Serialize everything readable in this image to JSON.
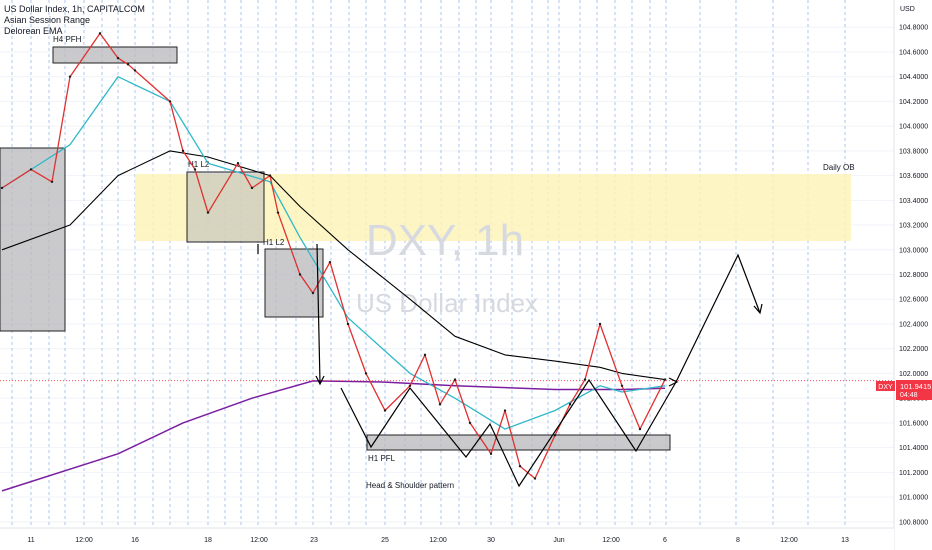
{
  "legend": {
    "symbol": "US Dollar Index, 1h, CAPITALCOM",
    "indicator_1": "Asian Session Range",
    "indicator_2": "Delorean EMA"
  },
  "watermark": {
    "ticker": "DXY, 1h",
    "name": "US Dollar Index"
  },
  "price_scale": {
    "currency": "USD",
    "ticks": [
      "104.8000",
      "104.6000",
      "104.4000",
      "104.2000",
      "104.0000",
      "103.8000",
      "103.6000",
      "103.4000",
      "103.2000",
      "103.0000",
      "102.8000",
      "102.6000",
      "102.4000",
      "102.2000",
      "102.0000",
      "101.8000",
      "101.6000",
      "101.4000",
      "101.2000",
      "101.0000",
      "100.8000"
    ],
    "last_price_label": "DXY",
    "last_price": "101.9415",
    "countdown": "04:48"
  },
  "time_scale": {
    "ticks": [
      "11",
      "12:00",
      "16",
      "18",
      "12:00",
      "23",
      "25",
      "12:00",
      "30",
      "Jun",
      "12:00",
      "6",
      "8",
      "12:00",
      "13"
    ]
  },
  "annotations": {
    "h4_pfh": "H4 PFH",
    "h1_l2_a": "H1 L2",
    "h1_l2_b": "H1 L2",
    "h1_pfl": "H1 PFL",
    "head_shoulders": "Head & Shoulder pattern",
    "daily_ob": "Daily OB"
  },
  "colors": {
    "price_line": "#e03030",
    "ema_fast": "#2fb8c8",
    "ema_slow": "#000000",
    "ema_long": "#7b1fa2",
    "daily_ob": "#fdf3b8",
    "range_box": "#b8b8bc",
    "session_line": "#5b8fd8",
    "badge": "#f23645"
  },
  "chart_data": {
    "type": "line",
    "title": "US Dollar Index, 1h, CAPITALCOM",
    "y_range": [
      100.75,
      105.02
    ],
    "series": [
      {
        "name": "",
        "x": [
          "May 10 12:00",
          "May 11",
          "May 11 12:00",
          "May 12",
          "May 12 12:00",
          "May 15",
          "May 15 12:00",
          "May 16",
          "May 16 12:00",
          "May 17",
          "May 17 12:00",
          "May 18",
          "May 18 12:00",
          "May 19",
          "May 19 12:00",
          "May 22",
          "May 22 12:00",
          "May 23",
          "May 23 12:00",
          "May 24",
          "May 24 12:00",
          "May 25",
          "May 25 12:00",
          "May 26",
          "May 26 12:00",
          "May 29",
          "May 29 12:00",
          "May 30",
          "May 30 12:00",
          "May 31",
          "May 31 12:00",
          "Jun 1",
          "Jun 1 12:00",
          "Jun 2",
          "Jun 2 12:00",
          "Jun 5",
          "Jun 5 12:00",
          "Jun 6"
        ],
        "values": [
          103.5,
          103.65,
          103.55,
          104.4,
          104.75,
          104.55,
          104.5,
          104.45,
          104.2,
          103.8,
          103.65,
          103.3,
          103.7,
          103.5,
          103.6,
          103.3,
          102.8,
          102.65,
          102.9,
          102.4,
          102.0,
          101.7,
          101.9,
          102.15,
          101.75,
          101.95,
          101.6,
          101.35,
          101.7,
          101.25,
          101.15,
          101.5,
          101.75,
          101.95,
          102.4,
          101.9,
          101.55,
          101.95
        ]
      },
      {
        "name": "",
        "x": [
          "May 10 12:00",
          "May 12",
          "May 15",
          "May 16 12:00",
          "May 18",
          "May 19 12:00",
          "May 22 12:00",
          "May 24",
          "May 25 12:00",
          "May 29",
          "May 30 12:00",
          "Jun 1",
          "Jun 2 12:00",
          "Jun 5",
          "Jun 6"
        ],
        "values": [
          103.5,
          103.85,
          104.4,
          104.2,
          103.7,
          103.55,
          103.1,
          102.45,
          102.0,
          101.8,
          101.55,
          101.7,
          101.9,
          101.85,
          101.9
        ]
      },
      {
        "name": "",
        "x": [
          "May 10 12:00",
          "May 12",
          "May 15",
          "May 16 12:00",
          "May 18",
          "May 19 12:00",
          "May 22 12:00",
          "May 24",
          "May 25 12:00",
          "May 29",
          "May 30 12:00",
          "Jun 1",
          "Jun 2 12:00",
          "Jun 5",
          "Jun 6"
        ],
        "values": [
          103.0,
          103.2,
          103.6,
          103.8,
          103.75,
          103.6,
          103.35,
          103.0,
          102.6,
          102.3,
          102.15,
          102.1,
          102.05,
          102.0,
          101.95
        ]
      },
      {
        "name": "",
        "x": [
          "May 10 12:00",
          "May 15",
          "May 17",
          "May 19",
          "May 23",
          "May 25",
          "May 29",
          "Jun 1",
          "Jun 2 12:00",
          "Jun 5",
          "Jun 6"
        ],
        "values": [
          101.05,
          101.35,
          101.6,
          101.8,
          101.94,
          101.93,
          101.9,
          101.87,
          101.87,
          101.87,
          101.88
        ]
      }
    ]
  }
}
